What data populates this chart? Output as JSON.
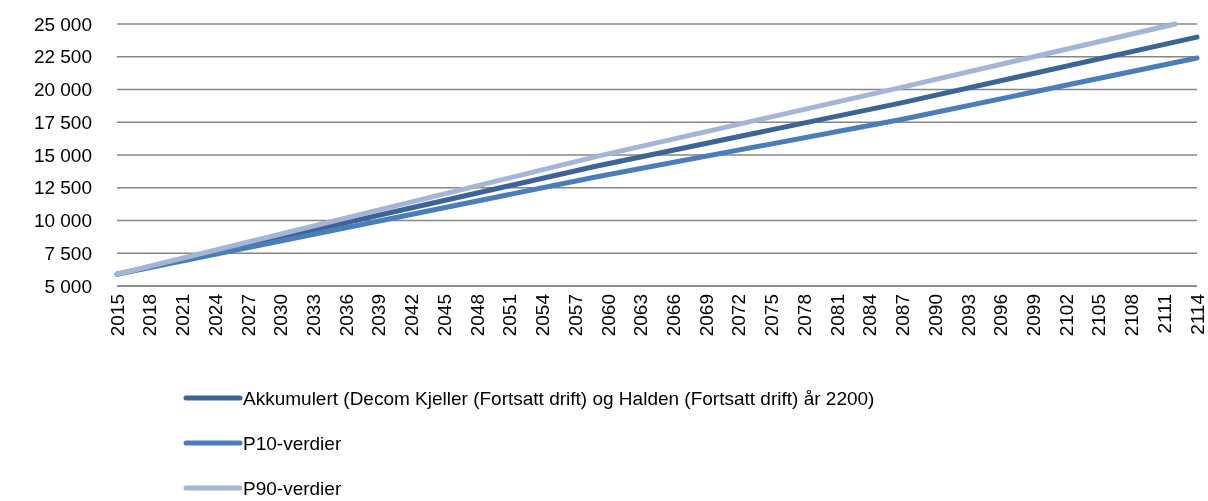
{
  "chart_data": {
    "type": "line",
    "xlim": [
      2015,
      2114
    ],
    "xticks": [
      2015,
      2018,
      2021,
      2024,
      2027,
      2030,
      2033,
      2036,
      2039,
      2042,
      2045,
      2048,
      2051,
      2054,
      2057,
      2060,
      2063,
      2066,
      2069,
      2072,
      2075,
      2078,
      2081,
      2084,
      2087,
      2090,
      2093,
      2096,
      2099,
      2102,
      2105,
      2108,
      2111,
      2114
    ],
    "ylim": [
      5000,
      25000
    ],
    "yticks": [
      {
        "value": 5000,
        "label": "5 000"
      },
      {
        "value": 7500,
        "label": "7 500"
      },
      {
        "value": 10000,
        "label": "10 000"
      },
      {
        "value": 12500,
        "label": "12 500"
      },
      {
        "value": 15000,
        "label": "15 000"
      },
      {
        "value": 17500,
        "label": "17 500"
      },
      {
        "value": 20000,
        "label": "20 000"
      },
      {
        "value": 22500,
        "label": "22 500"
      },
      {
        "value": 25000,
        "label": "25 000"
      }
    ],
    "grid": "y",
    "legend": "bottom",
    "marker": "none",
    "line_style": "solid",
    "series": [
      {
        "name": "Akkumulert (Decom Kjeller (Fortsatt drift) og Halden (Fortsatt drift) år 2200)",
        "color": "#3c6496",
        "x": [
          2015,
          2059,
          2087,
          2114
        ],
        "values": [
          5900,
          14160,
          19000,
          24000
        ]
      },
      {
        "name": "P10-verdier",
        "color": "#4a7ebb",
        "x": [
          2015,
          2059,
          2087,
          2114
        ],
        "values": [
          5900,
          13340,
          17730,
          22400
        ]
      },
      {
        "name": "P90-verdier",
        "color": "#a5b6d4",
        "x": [
          2015,
          2059,
          2087,
          2112
        ],
        "values": [
          5900,
          14890,
          20180,
          25000
        ]
      }
    ]
  }
}
